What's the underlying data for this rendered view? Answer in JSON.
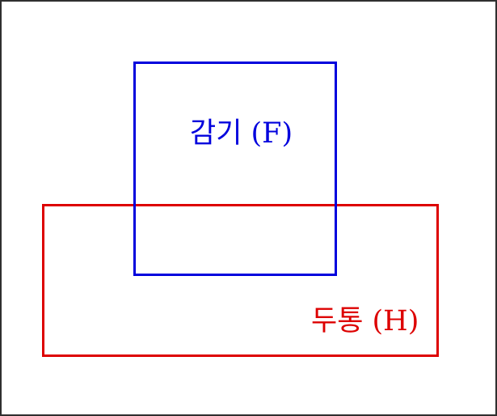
{
  "diagram": {
    "type": "venn",
    "sets": [
      {
        "id": "F",
        "label": "감기 (F)",
        "color": "#0000dd"
      },
      {
        "id": "H",
        "label": "두통 (H)",
        "color": "#dd0000"
      }
    ],
    "border_color": "#2f2f2f",
    "background": "#ffffff"
  }
}
